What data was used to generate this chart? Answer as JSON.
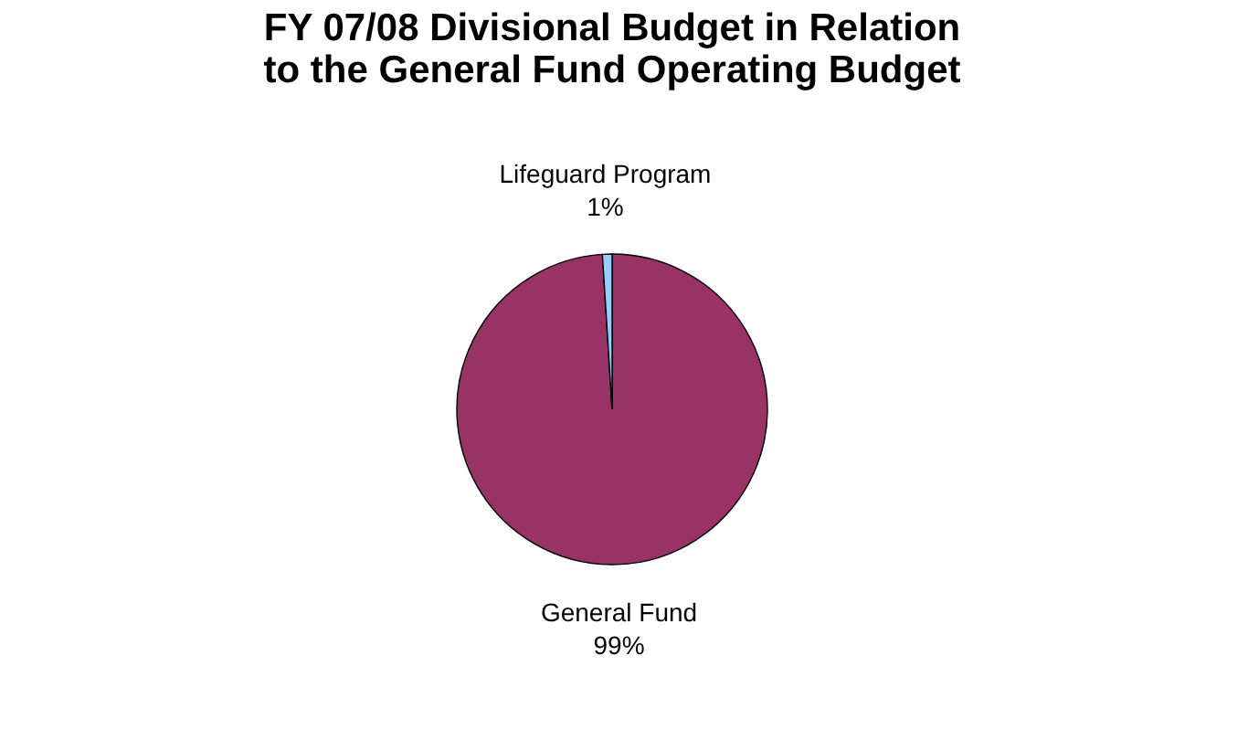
{
  "chart_data": {
    "type": "pie",
    "title": "FY 07/08 Divisional Budget in Relation to the General Fund Operating Budget",
    "categories": [
      "General Fund",
      "Lifeguard Program"
    ],
    "values": [
      99,
      1
    ],
    "colors": [
      "#993366",
      "#99ccff"
    ],
    "value_labels": [
      "99%",
      "1%"
    ],
    "legend": false
  }
}
